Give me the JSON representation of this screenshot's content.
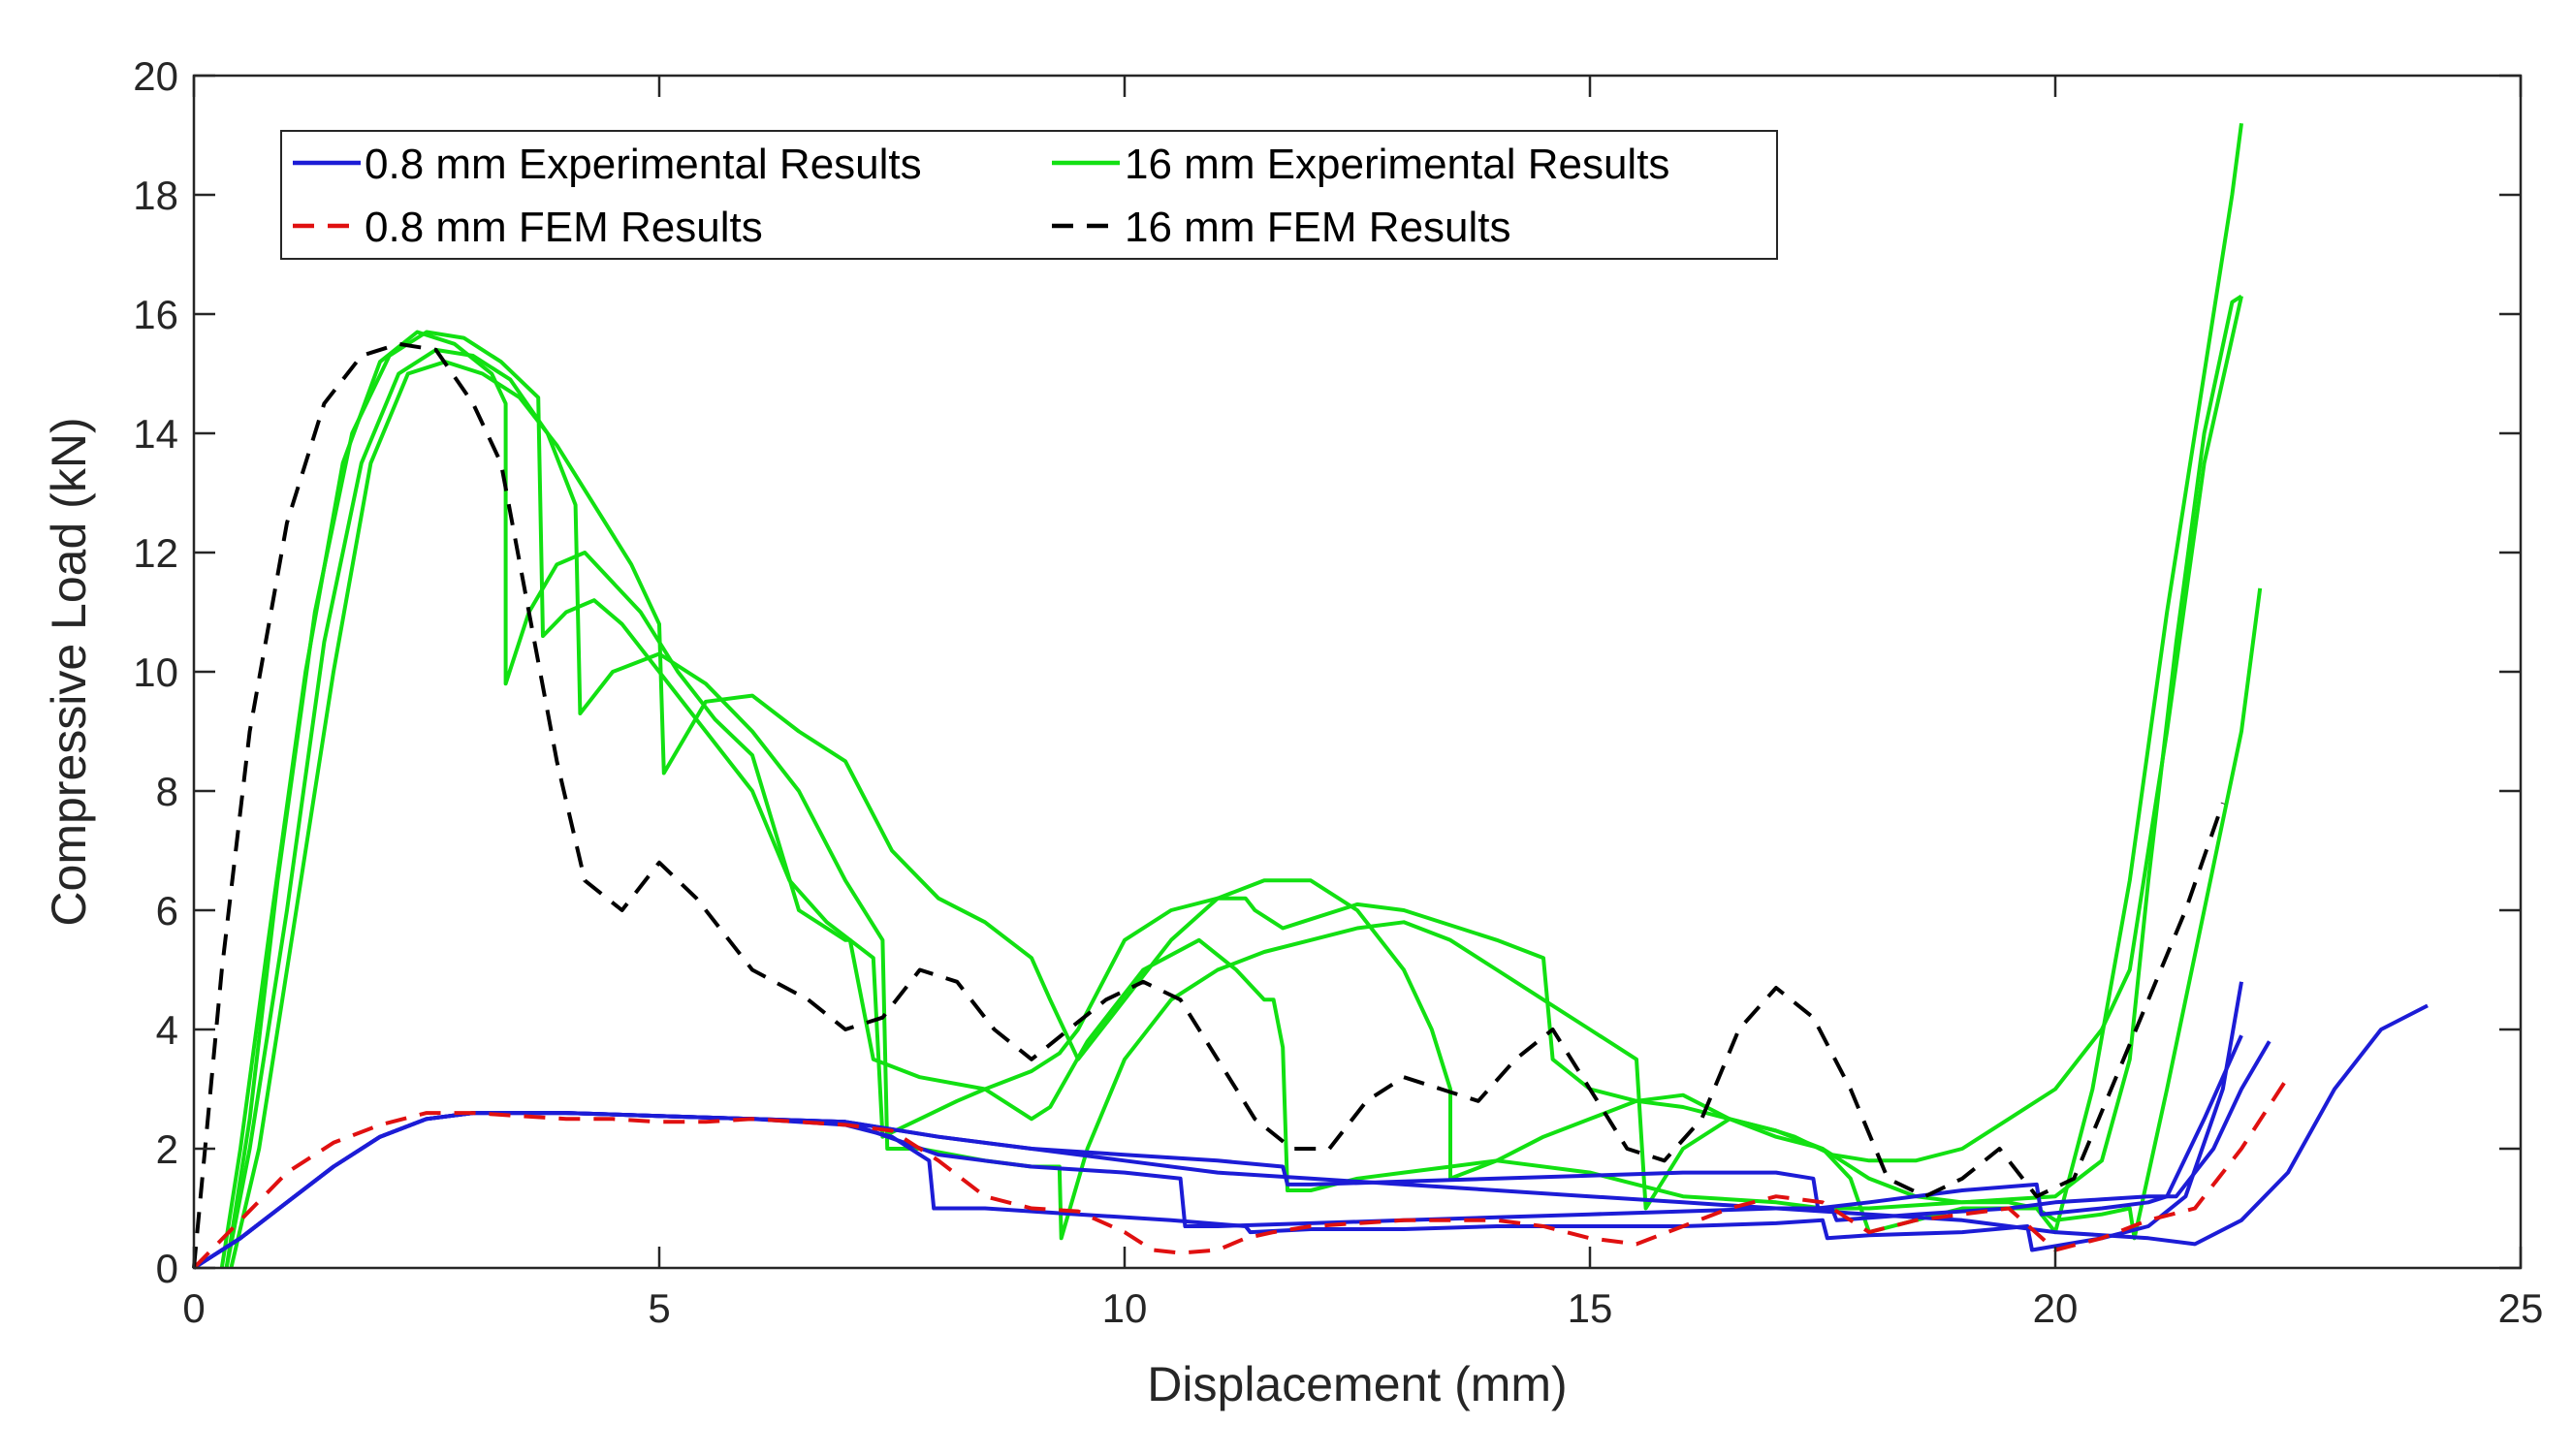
{
  "chart_data": {
    "type": "line",
    "title": "",
    "xlabel": "Displacement (mm)",
    "ylabel": "Compressive Load (kN)",
    "xlim": [
      0,
      25
    ],
    "ylim": [
      0,
      20
    ],
    "xticks": [
      0,
      5,
      10,
      15,
      20,
      25
    ],
    "yticks": [
      0,
      2,
      4,
      6,
      8,
      10,
      12,
      14,
      16,
      18,
      20
    ],
    "grid": false,
    "legend_position": "top-left",
    "series_styles": {
      "exp08": {
        "legend": "0.8 mm Experimental Results",
        "color": "#1c1cd6",
        "dash": "solid"
      },
      "fem08": {
        "legend": "0.8 mm FEM Results",
        "color": "#e01010",
        "dash": "dashed"
      },
      "exp16": {
        "legend": "16 mm Experimental Results",
        "color": "#12e012",
        "dash": "solid"
      },
      "fem16": {
        "legend": "16 mm FEM Results",
        "color": "#000000",
        "dash": "dashed"
      }
    },
    "series": [
      {
        "group": "exp16",
        "name": "16 mm Experimental Results (specimen 1)",
        "x": [
          0.3,
          0.5,
          0.8,
          1.2,
          1.6,
          2.0,
          2.4,
          2.8,
          3.2,
          3.35,
          3.35,
          3.6,
          3.9,
          4.2,
          4.5,
          4.8,
          5.2,
          5.6,
          6.0,
          6.5,
          7.0,
          7.05,
          7.3,
          7.8,
          8.5,
          9.0,
          9.2,
          9.2,
          9.6,
          10.2,
          10.8,
          11.2,
          11.5,
          11.6,
          11.7,
          11.75,
          12.0,
          12.5,
          13.0,
          13.5,
          14.0,
          15.0,
          16.0,
          17.0,
          17.5,
          18.0,
          19.0,
          20.0,
          20.5,
          20.8,
          21.0,
          21.3,
          21.6,
          21.9,
          22.0
        ],
        "y": [
          0,
          2,
          5.5,
          10,
          13.5,
          15.2,
          15.7,
          15.5,
          15.0,
          14.5,
          9.8,
          11.0,
          11.8,
          12.0,
          11.5,
          11.0,
          10.0,
          9.2,
          8.6,
          6.0,
          5.5,
          5.5,
          3.5,
          3.2,
          3.0,
          2.5,
          2.7,
          2.7,
          3.8,
          5.0,
          5.5,
          5.0,
          4.5,
          4.5,
          3.7,
          1.3,
          1.3,
          1.5,
          1.6,
          1.7,
          1.8,
          1.6,
          1.2,
          1.1,
          1.0,
          1.0,
          1.1,
          1.2,
          1.8,
          3.5,
          6.5,
          10.5,
          14.0,
          16.2,
          16.3
        ]
      },
      {
        "group": "exp16",
        "name": "16 mm Experimental Results (specimen 2)",
        "x": [
          0.35,
          0.6,
          0.9,
          1.3,
          1.7,
          2.1,
          2.5,
          2.9,
          3.3,
          3.7,
          3.75,
          4.0,
          4.3,
          4.6,
          5.0,
          5.5,
          6.0,
          6.4,
          6.8,
          7.3,
          7.4,
          7.8,
          8.2,
          8.5,
          9.0,
          9.3,
          9.5,
          10.0,
          10.5,
          11.0,
          11.3,
          11.4,
          11.6,
          11.7,
          11.9,
          12.5,
          13.0,
          14.0,
          14.5,
          14.6,
          15.0,
          15.5,
          16.0,
          16.5,
          17.0,
          17.2,
          17.6,
          18.0,
          18.5,
          19.0,
          19.5,
          20.0,
          20.5,
          20.8,
          21.2,
          21.6,
          22.0
        ],
        "y": [
          0,
          2.5,
          6.5,
          11,
          14,
          15.3,
          15.7,
          15.6,
          15.2,
          14.6,
          10.6,
          11.0,
          11.2,
          10.8,
          10.0,
          9.0,
          8.0,
          6.5,
          5.8,
          5.2,
          2.2,
          2.5,
          2.8,
          3.0,
          3.3,
          3.6,
          4.0,
          5.5,
          6.0,
          6.2,
          6.2,
          6.0,
          5.8,
          5.7,
          5.8,
          6.1,
          6.0,
          5.5,
          5.2,
          3.5,
          3.0,
          2.8,
          2.7,
          2.5,
          2.3,
          2.2,
          1.9,
          1.8,
          1.8,
          2.0,
          2.5,
          3.0,
          4.0,
          5.0,
          9.0,
          13.5,
          16.3
        ]
      },
      {
        "group": "exp16",
        "name": "16 mm Experimental Results (specimen 3)",
        "x": [
          0.35,
          0.6,
          1.0,
          1.4,
          1.8,
          2.2,
          2.6,
          3.0,
          3.4,
          3.8,
          4.1,
          4.15,
          4.5,
          5.0,
          5.5,
          6.0,
          6.5,
          7.0,
          7.4,
          7.45,
          7.8,
          8.5,
          9.0,
          9.3,
          9.32,
          9.6,
          10.0,
          10.5,
          11.0,
          11.5,
          12.0,
          12.5,
          13.0,
          13.5,
          14.0,
          14.5,
          15.0,
          15.5,
          15.6,
          16.0,
          16.5,
          17.0,
          17.5,
          18.0,
          18.5,
          19.0,
          19.5,
          19.8,
          20.0,
          20.4,
          20.8,
          21.2,
          21.6,
          21.9,
          22.0
        ],
        "y": [
          0,
          2,
          6,
          10.5,
          13.5,
          15.0,
          15.4,
          15.3,
          14.9,
          14.0,
          12.8,
          9.3,
          10.0,
          10.3,
          9.8,
          9.0,
          8.0,
          6.5,
          5.5,
          2.0,
          2.0,
          1.8,
          1.7,
          1.7,
          0.5,
          2.0,
          3.5,
          4.5,
          5.0,
          5.3,
          5.5,
          5.7,
          5.8,
          5.5,
          5.0,
          4.5,
          4.0,
          3.5,
          1.0,
          2.0,
          2.5,
          2.3,
          2.0,
          1.5,
          1.2,
          1.1,
          1.1,
          1.0,
          0.6,
          3.0,
          6.5,
          11.0,
          15.0,
          18.0,
          19.2
        ]
      },
      {
        "group": "exp16",
        "name": "16 mm Experimental Results (specimen 4)",
        "x": [
          0.4,
          0.7,
          1.1,
          1.5,
          1.9,
          2.3,
          2.7,
          3.1,
          3.5,
          3.9,
          4.3,
          4.7,
          5.0,
          5.05,
          5.5,
          6.0,
          6.5,
          7.0,
          7.5,
          8.0,
          8.5,
          9.0,
          9.2,
          9.5,
          10.0,
          10.5,
          11.0,
          11.5,
          12.0,
          12.5,
          13.0,
          13.3,
          13.5,
          13.5,
          14.0,
          14.5,
          15.0,
          15.5,
          16.0,
          16.5,
          17.0,
          17.5,
          17.8,
          18.0,
          18.5,
          19.0,
          19.5,
          19.8,
          20.0,
          20.5,
          20.8,
          20.85,
          21.2,
          21.6,
          22.0,
          22.2
        ],
        "y": [
          0,
          2,
          6,
          10,
          13.5,
          15.0,
          15.2,
          15.0,
          14.6,
          13.8,
          12.8,
          11.8,
          10.8,
          8.3,
          9.5,
          9.6,
          9.0,
          8.5,
          7.0,
          6.2,
          5.8,
          5.2,
          4.5,
          3.5,
          4.5,
          5.5,
          6.2,
          6.5,
          6.5,
          6.0,
          5.0,
          4.0,
          3.0,
          1.5,
          1.8,
          2.2,
          2.5,
          2.8,
          2.9,
          2.5,
          2.2,
          2.0,
          1.5,
          0.6,
          0.8,
          1.0,
          1.0,
          1.0,
          0.8,
          0.9,
          1.0,
          0.5,
          3.0,
          6.0,
          9.0,
          11.4
        ]
      },
      {
        "group": "exp08",
        "name": "0.8 mm Experimental Results (specimen 1)",
        "x": [
          0,
          0.5,
          1.0,
          1.5,
          2.0,
          2.5,
          3.0,
          3.5,
          4.0,
          5.0,
          6.0,
          7.0,
          7.5,
          7.9,
          7.95,
          8.5,
          9.5,
          10.5,
          11.3,
          11.35,
          12.0,
          13.0,
          14.0,
          15.0,
          16.0,
          17.0,
          17.5,
          17.55,
          18.0,
          19.0,
          19.7,
          19.75,
          20.5,
          21.0,
          21.4,
          21.8,
          22.0
        ],
        "y": [
          0,
          0.5,
          1.1,
          1.7,
          2.2,
          2.5,
          2.6,
          2.6,
          2.6,
          2.55,
          2.5,
          2.4,
          2.2,
          1.8,
          1.0,
          1.0,
          0.9,
          0.8,
          0.7,
          0.6,
          0.65,
          0.65,
          0.7,
          0.7,
          0.7,
          0.75,
          0.8,
          0.5,
          0.55,
          0.6,
          0.7,
          0.3,
          0.5,
          0.7,
          1.2,
          3.0,
          4.8
        ]
      },
      {
        "group": "exp08",
        "name": "0.8 mm Experimental Results (specimen 2)",
        "x": [
          0,
          0.5,
          1.0,
          1.5,
          2.0,
          2.5,
          3.0,
          4.0,
          5.0,
          6.0,
          7.0,
          8.0,
          9.0,
          10.0,
          10.6,
          10.65,
          11.0,
          12.0,
          13.0,
          14.0,
          15.0,
          16.0,
          17.0,
          17.6,
          17.65,
          18.5,
          19.5,
          20.0,
          20.5,
          21.0,
          21.3,
          21.7,
          22.0,
          22.3
        ],
        "y": [
          0,
          0.5,
          1.1,
          1.7,
          2.2,
          2.5,
          2.6,
          2.6,
          2.55,
          2.5,
          2.45,
          1.9,
          1.7,
          1.6,
          1.5,
          0.7,
          0.7,
          0.75,
          0.8,
          0.85,
          0.9,
          0.95,
          1.0,
          1.0,
          0.8,
          0.9,
          1.0,
          1.1,
          1.15,
          1.2,
          1.2,
          2.0,
          3.0,
          3.8
        ]
      },
      {
        "group": "exp08",
        "name": "0.8 mm Experimental Results (specimen 3)",
        "x": [
          0,
          0.5,
          1.0,
          1.5,
          2.0,
          2.5,
          3.0,
          4.0,
          5.0,
          6.0,
          7.0,
          8.0,
          9.0,
          10.0,
          11.0,
          11.7,
          11.75,
          12.0,
          13.0,
          14.0,
          15.0,
          16.0,
          17.0,
          17.4,
          17.45,
          18.0,
          19.0,
          19.8,
          19.85,
          20.5,
          21.0,
          21.2,
          21.6,
          22.0
        ],
        "y": [
          0,
          0.5,
          1.1,
          1.7,
          2.2,
          2.5,
          2.6,
          2.6,
          2.55,
          2.5,
          2.45,
          2.2,
          2.0,
          1.9,
          1.8,
          1.7,
          1.4,
          1.4,
          1.45,
          1.5,
          1.55,
          1.6,
          1.6,
          1.5,
          1.0,
          1.1,
          1.3,
          1.4,
          0.9,
          1.0,
          1.1,
          1.2,
          2.5,
          3.9
        ]
      },
      {
        "group": "exp08",
        "name": "0.8 mm Experimental Results (specimen 4)",
        "x": [
          0,
          0.5,
          1.0,
          1.5,
          2.0,
          2.5,
          3.0,
          4.0,
          5.0,
          6.0,
          7.0,
          8.0,
          9.0,
          10.0,
          11.0,
          12.0,
          13.0,
          14.0,
          15.0,
          16.0,
          17.0,
          18.0,
          19.0,
          20.0,
          21.0,
          21.5,
          22.0,
          22.5,
          23.0,
          23.5,
          24.0
        ],
        "y": [
          0,
          0.5,
          1.1,
          1.7,
          2.2,
          2.5,
          2.6,
          2.6,
          2.55,
          2.5,
          2.45,
          2.2,
          2.0,
          1.8,
          1.6,
          1.5,
          1.4,
          1.3,
          1.2,
          1.1,
          1.0,
          0.9,
          0.8,
          0.6,
          0.5,
          0.4,
          0.8,
          1.6,
          3.0,
          4.0,
          4.4
        ]
      },
      {
        "group": "fem08",
        "name": "0.8 mm FEM Results",
        "x": [
          0,
          0.5,
          1.0,
          1.5,
          2.0,
          2.5,
          3.0,
          3.5,
          4.0,
          4.5,
          5.0,
          5.5,
          6.0,
          6.5,
          7.0,
          7.5,
          8.0,
          8.5,
          9.0,
          9.5,
          10.0,
          10.3,
          10.6,
          11.0,
          11.3,
          11.6,
          12.0,
          12.5,
          13.0,
          13.5,
          14.0,
          14.5,
          15.0,
          15.5,
          16.0,
          16.5,
          17.0,
          17.5,
          18.0,
          18.5,
          19.0,
          19.5,
          20.0,
          20.5,
          21.0,
          21.5,
          22.0,
          22.5
        ],
        "y": [
          0,
          0.8,
          1.6,
          2.1,
          2.4,
          2.6,
          2.6,
          2.55,
          2.5,
          2.5,
          2.45,
          2.45,
          2.5,
          2.45,
          2.4,
          2.3,
          1.8,
          1.2,
          1.0,
          0.95,
          0.6,
          0.3,
          0.25,
          0.3,
          0.5,
          0.6,
          0.7,
          0.75,
          0.8,
          0.8,
          0.8,
          0.7,
          0.5,
          0.4,
          0.7,
          1.0,
          1.2,
          1.1,
          0.6,
          0.8,
          0.9,
          1.0,
          0.3,
          0.5,
          0.8,
          1.0,
          2.0,
          3.2
        ]
      },
      {
        "group": "fem16",
        "name": "16 mm FEM Results",
        "x": [
          0,
          0.3,
          0.6,
          1.0,
          1.4,
          1.8,
          2.2,
          2.6,
          3.0,
          3.3,
          3.6,
          3.9,
          4.2,
          4.6,
          5.0,
          5.4,
          6.0,
          6.6,
          7.0,
          7.4,
          7.8,
          8.2,
          8.6,
          9.0,
          9.4,
          9.8,
          10.2,
          10.6,
          11.0,
          11.4,
          11.8,
          12.2,
          12.6,
          13.0,
          13.4,
          13.8,
          14.2,
          14.6,
          15.0,
          15.4,
          15.8,
          16.2,
          16.6,
          17.0,
          17.4,
          17.8,
          18.2,
          18.6,
          19.0,
          19.4,
          19.8,
          20.2,
          20.6,
          21.0,
          21.4,
          21.8
        ],
        "y": [
          0,
          5,
          9,
          12.5,
          14.5,
          15.3,
          15.5,
          15.4,
          14.5,
          13.5,
          11.0,
          8.5,
          6.5,
          6.0,
          6.8,
          6.2,
          5.0,
          4.5,
          4.0,
          4.2,
          5.0,
          4.8,
          4.0,
          3.5,
          4.0,
          4.5,
          4.8,
          4.5,
          3.5,
          2.5,
          2.0,
          2.0,
          2.8,
          3.2,
          3.0,
          2.8,
          3.5,
          4.0,
          3.0,
          2.0,
          1.8,
          2.5,
          4.0,
          4.7,
          4.2,
          3.0,
          1.5,
          1.2,
          1.5,
          2.0,
          1.2,
          1.5,
          3.0,
          4.5,
          6.0,
          7.8
        ]
      }
    ]
  }
}
